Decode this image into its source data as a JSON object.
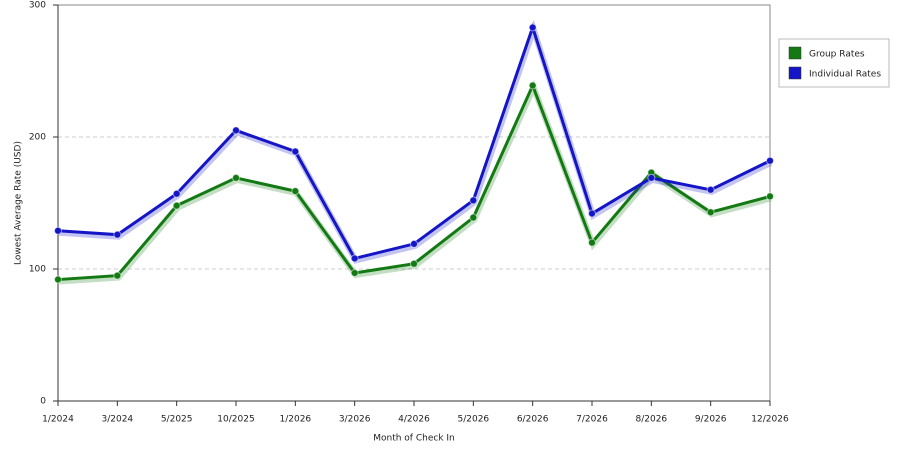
{
  "chart_data": {
    "type": "line",
    "x_label": "Month of Check In",
    "y_label": "Lowest Average Rate (USD)",
    "categories": [
      "1/2024",
      "3/2024",
      "5/2025",
      "10/2025",
      "1/2026",
      "3/2026",
      "4/2026",
      "5/2026",
      "6/2026",
      "7/2026",
      "8/2026",
      "9/2026",
      "12/2026"
    ],
    "series": [
      {
        "name": "Group Rates",
        "color": "#137a13",
        "values": [
          92,
          95,
          148,
          169,
          159,
          97,
          104,
          139,
          239,
          120,
          173,
          143,
          155
        ]
      },
      {
        "name": "Individual Rates",
        "color": "#1515c8",
        "values": [
          129,
          126,
          157,
          205,
          189,
          108,
          119,
          152,
          283,
          142,
          169,
          160,
          182
        ]
      }
    ],
    "ylim": [
      0,
      300
    ],
    "yticks": [
      0,
      100,
      200,
      300
    ],
    "grid": true,
    "legend": "right"
  }
}
